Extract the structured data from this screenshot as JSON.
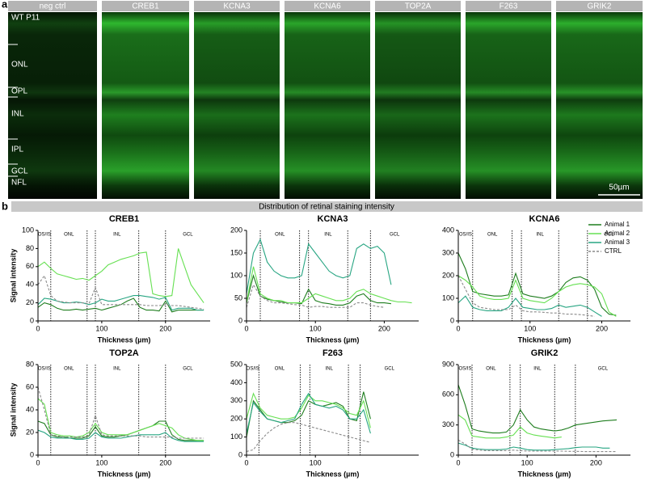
{
  "panel_a": {
    "label": "a",
    "columns": [
      "neg ctrl",
      "CREB1",
      "KCNA3",
      "KCNA6",
      "TOP2A",
      "F263",
      "GRIK2"
    ],
    "layers": [
      "WT P11",
      "ONL",
      "OPL",
      "INL",
      "IPL",
      "GCL",
      "NFL"
    ],
    "scale_bar": "50µm"
  },
  "panel_b": {
    "label": "b",
    "header": "Distribution of retinal staining intensity"
  },
  "chart_data": [
    {
      "type": "line",
      "title": "CREB1",
      "x_label": "Thickness (µm)",
      "y_label": "Signal intensity",
      "xlim": [
        0,
        270
      ],
      "xticks": [
        0,
        100,
        200
      ],
      "ylim": [
        0,
        100
      ],
      "yticks": [
        0,
        20,
        40,
        60,
        80,
        100
      ],
      "boundaries": [
        20,
        77,
        90,
        158,
        200
      ],
      "region_labels": [
        "OS/IS",
        "ONL",
        null,
        "INL",
        null,
        "GCL"
      ],
      "x": [
        0,
        10,
        20,
        30,
        40,
        50,
        60,
        70,
        80,
        90,
        100,
        110,
        120,
        130,
        140,
        150,
        160,
        170,
        180,
        190,
        200,
        210,
        220,
        230,
        240,
        250,
        260
      ],
      "series": [
        {
          "color": "#1e7d1e",
          "values": [
            15,
            20,
            18,
            14,
            12,
            12,
            13,
            12,
            13,
            14,
            12,
            14,
            16,
            18,
            22,
            25,
            15,
            12,
            12,
            11,
            22,
            10,
            12,
            12,
            12,
            12,
            12
          ]
        },
        {
          "color": "#66e052",
          "values": [
            60,
            65,
            58,
            52,
            50,
            48,
            46,
            47,
            45,
            50,
            55,
            62,
            65,
            68,
            70,
            72,
            75,
            76,
            30,
            28,
            27,
            28,
            80,
            60,
            40,
            30,
            20
          ]
        },
        {
          "color": "#27a582",
          "values": [
            18,
            25,
            24,
            22,
            20,
            20,
            21,
            20,
            18,
            20,
            24,
            22,
            22,
            24,
            26,
            28,
            28,
            27,
            26,
            24,
            26,
            12,
            14,
            14,
            14,
            12,
            12
          ]
        },
        {
          "color": "#8a8a8a",
          "dashed": true,
          "values": [
            40,
            50,
            28,
            22,
            21,
            20,
            20,
            20,
            19,
            37,
            18,
            18,
            18,
            18,
            18,
            18,
            18,
            17,
            17,
            17,
            18,
            17,
            17,
            16,
            15,
            14,
            13
          ]
        }
      ]
    },
    {
      "type": "line",
      "title": "KCNA3",
      "x_label": "Thickness (µm)",
      "xlim": [
        0,
        250
      ],
      "xticks": [
        0,
        100,
        200
      ],
      "ylim": [
        0,
        200
      ],
      "yticks": [
        0,
        50,
        100,
        150,
        200
      ],
      "boundaries": [
        20,
        77,
        90,
        147,
        180
      ],
      "region_labels": [
        null,
        "ONL",
        null,
        "INL",
        null,
        "GCL"
      ],
      "x": [
        0,
        10,
        20,
        30,
        40,
        50,
        60,
        70,
        80,
        90,
        100,
        110,
        120,
        130,
        140,
        150,
        160,
        170,
        180,
        190,
        200,
        210,
        220,
        230,
        240
      ],
      "series": [
        {
          "color": "#1e7d1e",
          "values": [
            40,
            100,
            55,
            48,
            45,
            42,
            40,
            40,
            38,
            70,
            45,
            40,
            38,
            35,
            35,
            40,
            55,
            60,
            45,
            40,
            40,
            38,
            null,
            null,
            null
          ]
        },
        {
          "color": "#66e052",
          "values": [
            40,
            120,
            60,
            50,
            45,
            45,
            40,
            40,
            40,
            50,
            60,
            55,
            50,
            45,
            45,
            50,
            65,
            70,
            60,
            55,
            50,
            45,
            42,
            42,
            40
          ]
        },
        {
          "color": "#27a582",
          "values": [
            60,
            150,
            180,
            130,
            110,
            100,
            95,
            95,
            100,
            170,
            150,
            130,
            110,
            100,
            95,
            100,
            160,
            170,
            160,
            165,
            150,
            80,
            null,
            null,
            null
          ]
        },
        {
          "color": "#8a8a8a",
          "dashed": true,
          "values": [
            30,
            80,
            55,
            45,
            40,
            40,
            38,
            36,
            35,
            30,
            32,
            32,
            30,
            30,
            30,
            30,
            40,
            40,
            35,
            32,
            30,
            null,
            null,
            null,
            null
          ]
        }
      ]
    },
    {
      "type": "line",
      "title": "KCNA6",
      "legend": "upper right",
      "xlim": [
        0,
        240
      ],
      "xticks": [
        0,
        100,
        200
      ],
      "ylim": [
        0,
        400
      ],
      "yticks": [
        0,
        100,
        200,
        300,
        400
      ],
      "boundaries": [
        20,
        75,
        88,
        140,
        180
      ],
      "region_labels": [
        "OS/IS",
        "ONL",
        null,
        "INL",
        null,
        "GCL"
      ],
      "x_label": "Thickness (µm)",
      "x": [
        0,
        10,
        20,
        30,
        40,
        50,
        60,
        70,
        80,
        90,
        100,
        110,
        120,
        130,
        140,
        150,
        160,
        170,
        180,
        190,
        200,
        210,
        220
      ],
      "series": [
        {
          "name": "Animal 1",
          "color": "#1e7d1e",
          "values": [
            300,
            230,
            130,
            120,
            115,
            110,
            110,
            115,
            210,
            120,
            110,
            105,
            100,
            110,
            130,
            170,
            190,
            195,
            180,
            140,
            60,
            30,
            25
          ]
        },
        {
          "name": "Animal 2",
          "color": "#66e052",
          "values": [
            200,
            180,
            150,
            110,
            100,
            95,
            95,
            100,
            180,
            100,
            90,
            85,
            80,
            100,
            130,
            150,
            160,
            165,
            160,
            150,
            120,
            40,
            20
          ]
        },
        {
          "name": "Animal 3",
          "color": "#27a582",
          "values": [
            80,
            110,
            60,
            50,
            45,
            45,
            45,
            60,
            100,
            60,
            55,
            50,
            50,
            55,
            70,
            60,
            65,
            70,
            60,
            40,
            20,
            null,
            null
          ]
        },
        {
          "name": "CTRL",
          "color": "#8a8a8a",
          "dashed": true,
          "values": [
            200,
            140,
            80,
            60,
            55,
            50,
            50,
            50,
            70,
            45,
            40,
            40,
            38,
            35,
            35,
            30,
            30,
            28,
            25,
            20,
            null,
            null,
            null
          ]
        }
      ]
    },
    {
      "type": "line",
      "title": "TOP2A",
      "x_label": "Thickness (µm)",
      "y_label": "Signal intensity",
      "xlim": [
        0,
        270
      ],
      "xticks": [
        0,
        100,
        200
      ],
      "ylim": [
        0,
        80
      ],
      "yticks": [
        0,
        20,
        40,
        60,
        80
      ],
      "boundaries": [
        20,
        77,
        90,
        158,
        200
      ],
      "region_labels": [
        "OS/IS",
        "ONL",
        null,
        "INL",
        null,
        "GCL"
      ],
      "x": [
        0,
        10,
        20,
        30,
        40,
        50,
        60,
        70,
        80,
        90,
        100,
        110,
        120,
        130,
        140,
        150,
        160,
        170,
        180,
        190,
        200,
        210,
        220,
        230,
        240,
        250,
        260
      ],
      "series": [
        {
          "color": "#1e7d1e",
          "values": [
            30,
            28,
            18,
            16,
            16,
            15,
            15,
            15,
            17,
            25,
            17,
            16,
            16,
            17,
            18,
            20,
            22,
            24,
            26,
            30,
            30,
            18,
            14,
            13,
            13,
            13,
            13
          ]
        },
        {
          "color": "#66e052",
          "values": [
            50,
            45,
            20,
            18,
            17,
            17,
            16,
            17,
            20,
            28,
            20,
            18,
            18,
            18,
            18,
            20,
            22,
            24,
            26,
            28,
            26,
            24,
            18,
            15,
            14,
            13,
            13
          ]
        },
        {
          "color": "#27a582",
          "values": [
            22,
            20,
            16,
            15,
            15,
            15,
            14,
            14,
            15,
            20,
            16,
            15,
            15,
            15,
            16,
            17,
            18,
            18,
            18,
            18,
            20,
            15,
            13,
            12,
            12,
            12,
            12
          ]
        },
        {
          "color": "#8a8a8a",
          "dashed": true,
          "values": [
            60,
            40,
            18,
            17,
            16,
            16,
            16,
            16,
            18,
            35,
            18,
            17,
            17,
            17,
            17,
            17,
            17,
            16,
            16,
            16,
            16,
            16,
            15,
            15,
            15,
            15,
            15
          ]
        }
      ]
    },
    {
      "type": "line",
      "title": "F263",
      "x_label": "Thickness (µm)",
      "xlim": [
        0,
        250
      ],
      "xticks": [
        0,
        100
      ],
      "ylim": [
        0,
        500
      ],
      "yticks": [
        0,
        100,
        200,
        300,
        400,
        500
      ],
      "boundaries": [
        18,
        78,
        92,
        148,
        165
      ],
      "region_labels": [
        "OS/IS",
        "ONL",
        null,
        "INL",
        null,
        "GCL"
      ],
      "x": [
        0,
        10,
        20,
        30,
        40,
        50,
        60,
        70,
        80,
        90,
        100,
        110,
        120,
        130,
        140,
        150,
        160,
        170,
        180,
        190
      ],
      "series": [
        {
          "color": "#1e7d1e",
          "values": [
            100,
            300,
            250,
            200,
            190,
            180,
            180,
            190,
            220,
            300,
            280,
            270,
            280,
            290,
            270,
            200,
            190,
            350,
            200,
            null
          ]
        },
        {
          "color": "#66e052",
          "values": [
            200,
            340,
            260,
            220,
            210,
            200,
            200,
            210,
            260,
            330,
            300,
            300,
            290,
            280,
            260,
            230,
            220,
            300,
            150,
            null
          ]
        },
        {
          "color": "#27a582",
          "values": [
            120,
            290,
            240,
            200,
            190,
            180,
            190,
            200,
            280,
            340,
            280,
            270,
            260,
            270,
            250,
            200,
            200,
            250,
            120,
            null
          ]
        },
        {
          "color": "#8a8a8a",
          "dashed": true,
          "values": [
            20,
            30,
            80,
            120,
            150,
            170,
            180,
            180,
            170,
            160,
            150,
            140,
            130,
            120,
            110,
            100,
            90,
            80,
            70,
            null
          ]
        }
      ]
    },
    {
      "type": "line",
      "title": "GRIK2",
      "x_label": "Thickness (µm)",
      "xlim": [
        0,
        250
      ],
      "xticks": [
        0,
        100,
        200
      ],
      "ylim": [
        0,
        900
      ],
      "yticks": [
        0,
        300,
        600,
        900
      ],
      "boundaries": [
        20,
        75,
        90,
        140,
        170
      ],
      "region_labels": [
        "OS/IS",
        "ONL",
        null,
        "INL",
        null,
        "GCL"
      ],
      "x": [
        0,
        10,
        20,
        30,
        40,
        50,
        60,
        70,
        80,
        90,
        100,
        110,
        120,
        130,
        140,
        150,
        160,
        170,
        180,
        190,
        200,
        210,
        220,
        230
      ],
      "series": [
        {
          "color": "#1e7d1e",
          "values": [
            700,
            500,
            260,
            240,
            230,
            220,
            220,
            230,
            300,
            450,
            350,
            280,
            260,
            250,
            240,
            250,
            270,
            300,
            310,
            320,
            330,
            340,
            345,
            350
          ]
        },
        {
          "color": "#66e052",
          "values": [
            400,
            350,
            190,
            180,
            170,
            170,
            170,
            180,
            200,
            280,
            220,
            200,
            190,
            180,
            170,
            180,
            null,
            null,
            null,
            null,
            null,
            null,
            null,
            null
          ]
        },
        {
          "color": "#27a582",
          "values": [
            120,
            100,
            70,
            60,
            55,
            55,
            55,
            60,
            80,
            70,
            55,
            50,
            50,
            50,
            55,
            60,
            65,
            75,
            80,
            80,
            80,
            70,
            70,
            null
          ]
        },
        {
          "color": "#8a8a8a",
          "dashed": true,
          "values": [
            150,
            110,
            60,
            50,
            45,
            45,
            45,
            45,
            50,
            45,
            40,
            40,
            40,
            40,
            40,
            40,
            38,
            38,
            36,
            35,
            35,
            35,
            35,
            35
          ]
        }
      ]
    }
  ]
}
